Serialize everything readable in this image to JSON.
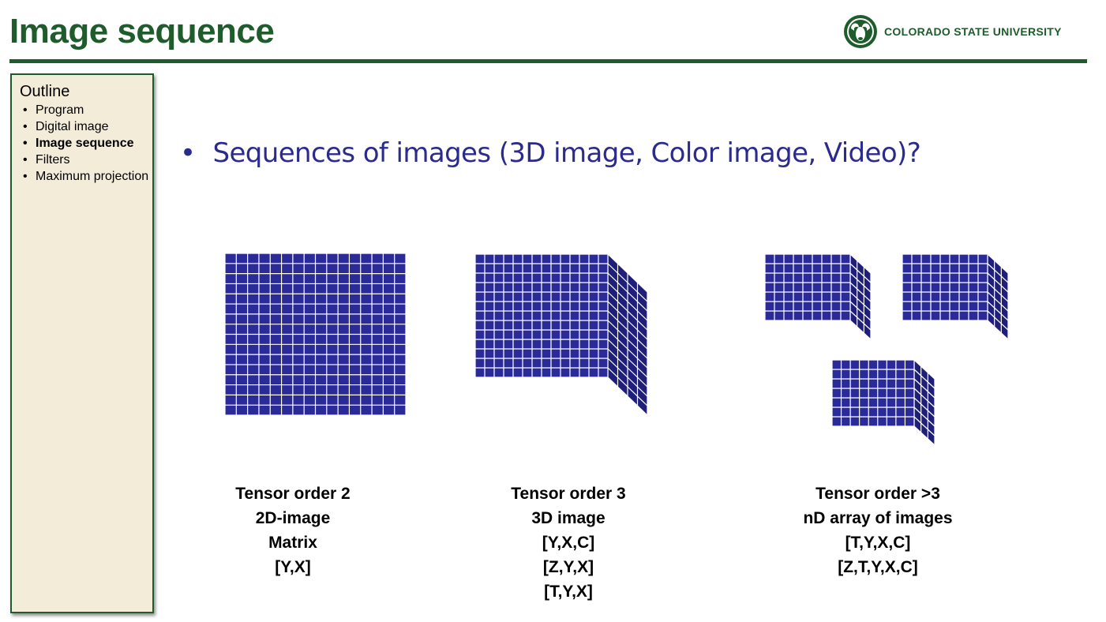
{
  "header": {
    "title": "Image sequence",
    "logo_text": "COLORADO STATE UNIVERSITY",
    "accent_color": "#1e5c2b"
  },
  "outline": {
    "title": "Outline",
    "items": [
      {
        "label": "Program",
        "active": false
      },
      {
        "label": "Digital image",
        "active": false
      },
      {
        "label": "Image sequence",
        "active": true
      },
      {
        "label": "Filters",
        "active": false
      },
      {
        "label": "Maximum projection",
        "active": false
      }
    ]
  },
  "main": {
    "bullet": "Sequences of images (3D image, Color image, Video)?",
    "bullet_color": "#2b2b8e",
    "grid_color": "#2a2a98",
    "captions": [
      {
        "lines": [
          "Tensor order 2",
          "2D-image",
          "Matrix",
          "[Y,X]"
        ]
      },
      {
        "lines": [
          "Tensor order 3",
          "3D image",
          "[Y,X,C]",
          "[Z,Y,X]",
          "[T,Y,X]"
        ]
      },
      {
        "lines": [
          "Tensor order >3",
          "nD array of images",
          "[T,Y,X,C]",
          "[Z,T,Y,X,C]"
        ]
      }
    ]
  }
}
